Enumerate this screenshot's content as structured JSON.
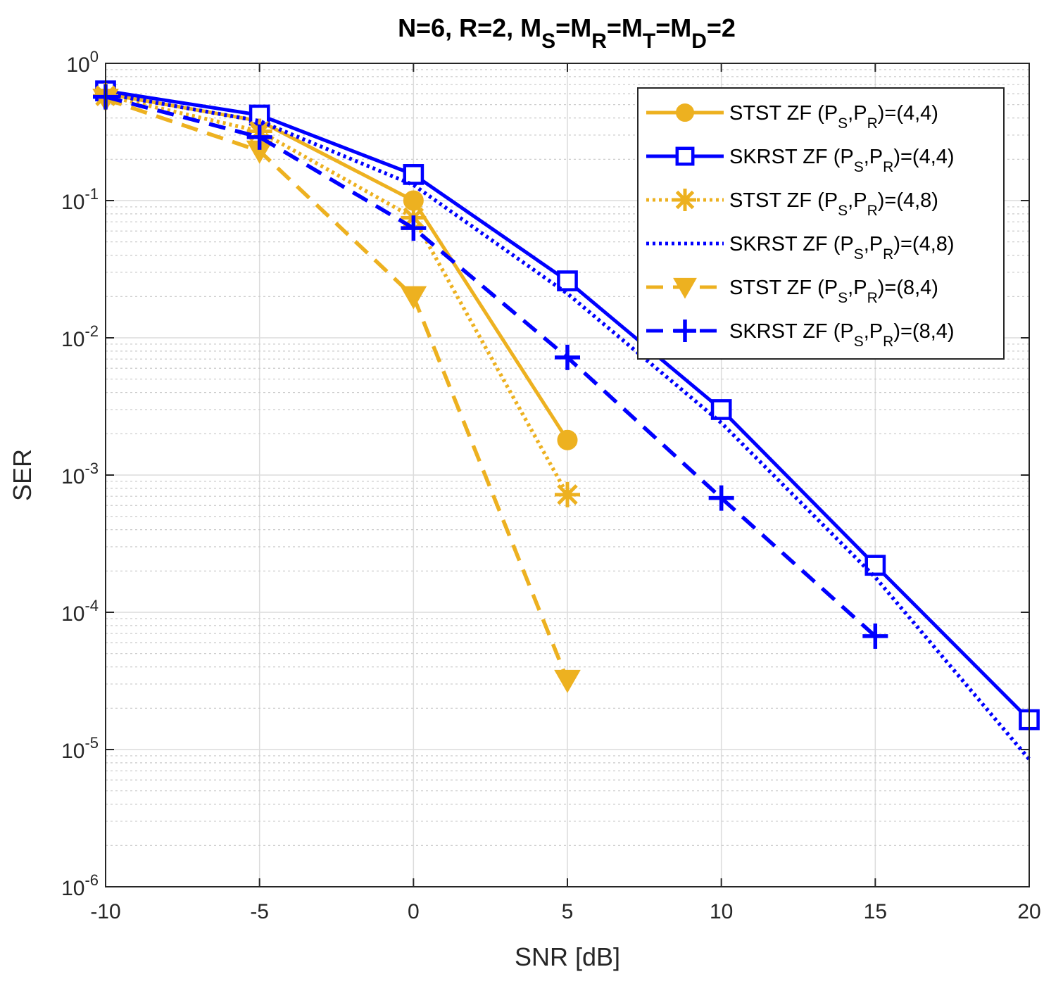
{
  "chart_data": {
    "type": "line",
    "title": {
      "prefix": "N=6,  R=2,  M",
      "parts": [
        {
          "sub": "S",
          "after": "=M"
        },
        {
          "sub": "R",
          "after": "=M"
        },
        {
          "sub": "T",
          "after": "=M"
        },
        {
          "sub": "D",
          "after": "=2"
        }
      ]
    },
    "xlabel": "SNR [dB]",
    "ylabel": "SER",
    "yscale": "log",
    "xlim": [
      -10,
      20
    ],
    "ylim": [
      1e-06,
      1
    ],
    "xticks": [
      -10,
      -5,
      0,
      5,
      10,
      15,
      20
    ],
    "xtick_labels": [
      "-10",
      "-5",
      "0",
      "5",
      "10",
      "15",
      "20"
    ],
    "yticks": [
      {
        "base": "10",
        "exp": "0",
        "value": 1
      },
      {
        "base": "10",
        "exp": "-1",
        "value": 0.1
      },
      {
        "base": "10",
        "exp": "-2",
        "value": 0.01
      },
      {
        "base": "10",
        "exp": "-3",
        "value": 0.001
      },
      {
        "base": "10",
        "exp": "-4",
        "value": 0.0001
      },
      {
        "base": "10",
        "exp": "-5",
        "value": 1e-05
      },
      {
        "base": "10",
        "exp": "-6",
        "value": 1e-06
      }
    ],
    "grid": true,
    "legend_position": "top-right",
    "series": [
      {
        "name": "STST ZF (P_S,P_R)=(4,4)",
        "legend": {
          "pre": "STST ZF (P",
          "s1": "S",
          "mid": ",P",
          "s2": "R",
          "post": ")=(4,4)"
        },
        "color": "#EDB120",
        "dash": "solid",
        "marker": "circle",
        "x": [
          -10,
          -5,
          0,
          5
        ],
        "y": [
          0.6,
          0.38,
          0.1,
          0.0018
        ]
      },
      {
        "name": "SKRST ZF (P_S,P_R)=(4,4)",
        "legend": {
          "pre": "SKRST ZF (P",
          "s1": "S",
          "mid": ",P",
          "s2": "R",
          "post": ")=(4,4)"
        },
        "color": "#0000FF",
        "dash": "solid",
        "marker": "square",
        "x": [
          -10,
          -5,
          0,
          5,
          10,
          15,
          20
        ],
        "y": [
          0.63,
          0.42,
          0.155,
          0.026,
          0.003,
          0.00022,
          1.65e-05
        ]
      },
      {
        "name": "STST ZF (P_S,P_R)=(4,8)",
        "legend": {
          "pre": "STST ZF (P",
          "s1": "S",
          "mid": ",P",
          "s2": "R",
          "post": ")=(4,8)"
        },
        "color": "#EDB120",
        "dash": "dotted",
        "marker": "asterisk",
        "x": [
          -10,
          -5,
          0,
          5
        ],
        "y": [
          0.58,
          0.32,
          0.075,
          0.00072
        ]
      },
      {
        "name": "SKRST ZF (P_S,P_R)=(4,8)",
        "legend": {
          "pre": "SKRST ZF (P",
          "s1": "S",
          "mid": ",P",
          "s2": "R",
          "post": ")=(4,8)"
        },
        "color": "#0000FF",
        "dash": "dotted",
        "marker": "none",
        "x": [
          -10,
          -5,
          0,
          5,
          10,
          15,
          20
        ],
        "y": [
          0.6,
          0.38,
          0.13,
          0.021,
          0.0024,
          0.00018,
          8.5e-06
        ]
      },
      {
        "name": "STST ZF (P_S,P_R)=(8,4)",
        "legend": {
          "pre": "STST ZF (P",
          "s1": "S",
          "mid": ",P",
          "s2": "R",
          "post": ")=(8,4)"
        },
        "color": "#EDB120",
        "dash": "dashed",
        "marker": "triangle-down",
        "x": [
          -10,
          -5,
          0,
          5
        ],
        "y": [
          0.55,
          0.23,
          0.02,
          3.2e-05
        ]
      },
      {
        "name": "SKRST ZF (P_S,P_R)=(8,4)",
        "legend": {
          "pre": "SKRST ZF (P",
          "s1": "S",
          "mid": ",P",
          "s2": "R",
          "post": ")=(8,4)"
        },
        "color": "#0000FF",
        "dash": "dashed",
        "marker": "plus",
        "x": [
          -10,
          -5,
          0,
          5,
          10,
          15
        ],
        "y": [
          0.57,
          0.29,
          0.063,
          0.0072,
          0.00068,
          6.7e-05
        ]
      }
    ]
  }
}
